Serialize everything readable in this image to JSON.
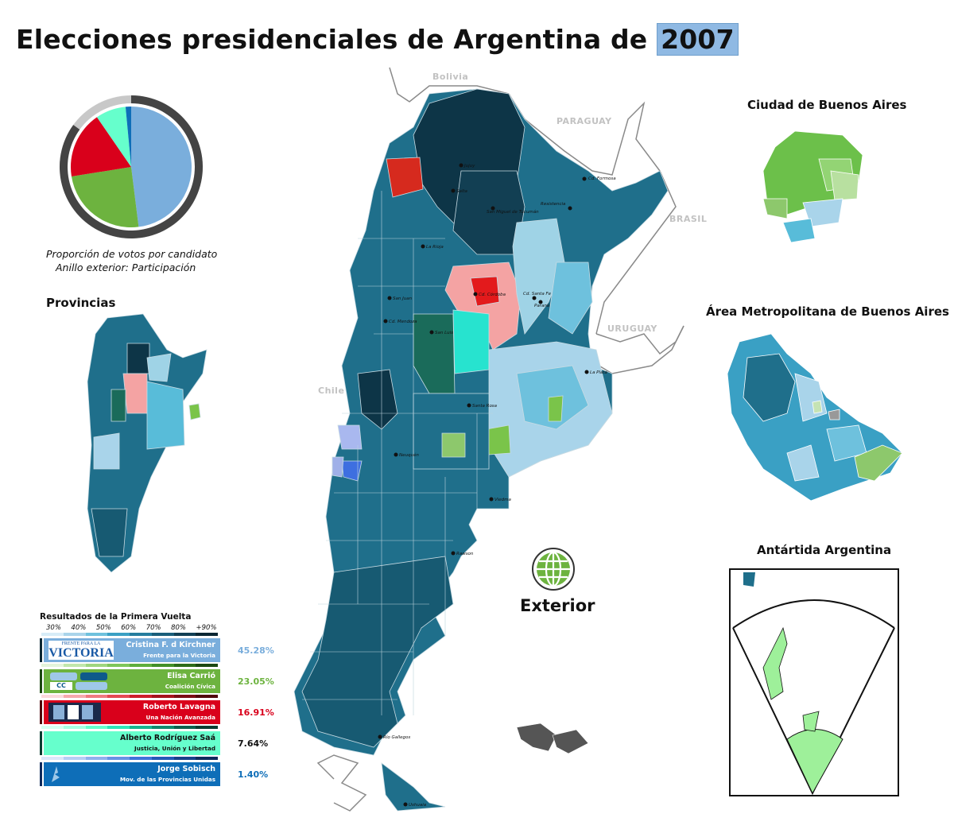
{
  "title": {
    "main": "Elecciones presidenciales de Argentina de",
    "year": "2007"
  },
  "pie": {
    "caption_line1": "Proporción de votos por candidato",
    "caption_line2": "Anillo exterior: Participación",
    "participation": 0.85,
    "slices": [
      {
        "candidate": "Cristina F. d Kirchner",
        "share": 45.28,
        "color": "#7aaedc"
      },
      {
        "candidate": "Elisa Carrió",
        "share": 23.05,
        "color": "#6db33f"
      },
      {
        "candidate": "Roberto Lavagna",
        "share": 16.91,
        "color": "#d9001b"
      },
      {
        "candidate": "Alberto Rodríguez Saá",
        "share": 7.64,
        "color": "#66ffcc"
      },
      {
        "candidate": "Jorge Sobisch",
        "share": 1.4,
        "color": "#0e6eb8"
      }
    ]
  },
  "labels": {
    "provincias": "Provincias",
    "caba": "Ciudad de Buenos Aires",
    "amba": "Área Metropolitana de Buenos Aires",
    "antartida": "Antártida Argentina",
    "exterior": "Exterior"
  },
  "neighbors": [
    "Bolivia",
    "PARAGUAY",
    "BRASIL",
    "URUGUAY",
    "Chile"
  ],
  "cities": [
    "Cd. Formosa",
    "Resistencia",
    "San Miguel de Tucumán",
    "Salta",
    "Jujuy",
    "La Rioja",
    "Cd. Córdoba",
    "San Juan",
    "Cd. Santa Fe",
    "Paraná",
    "Cd. Mendoza",
    "San Luis",
    "La Plata",
    "Santa Rosa",
    "Neuquén",
    "Viedma",
    "Rawson",
    "Río Gallegos",
    "Ushuaia"
  ],
  "results": {
    "header": "Resultados de la Primera Vuelta",
    "scale": [
      "30%",
      "40%",
      "50%",
      "60%",
      "70%",
      "80%",
      "+90%"
    ],
    "candidates": [
      {
        "name": "Cristina F. d Kirchner",
        "party": "Frente para la Victoria",
        "pct": "45.28%",
        "color": "#7aaedc",
        "ramp": [
          "#d7ecf7",
          "#a9d4ea",
          "#6ec1dd",
          "#3aa0c4",
          "#257d9e",
          "#1a5e7a",
          "#113f54",
          "#0a2633"
        ]
      },
      {
        "name": "Elisa Carrió",
        "party": "Coalición Cívica",
        "pct": "23.05%",
        "color": "#6db33f",
        "ramp": [
          "#e3f4da",
          "#c1e6ab",
          "#9fd67f",
          "#7fc65a",
          "#5fae3c",
          "#438f28",
          "#2d6b19",
          "#1b4810"
        ]
      },
      {
        "name": "Roberto Lavagna",
        "party": "Una Nación Avanzada",
        "pct": "16.91%",
        "color": "#d9001b",
        "ramp": [
          "#fbd9dc",
          "#f6a9ad",
          "#ef7a80",
          "#e44a53",
          "#cc1f2b",
          "#a5121d",
          "#7a0c14",
          "#4f070c"
        ]
      },
      {
        "name": "Alberto Rodríguez Saá",
        "party": "Justicia, Unión y Libertad",
        "pct": "7.64%",
        "color": "#66ffcc",
        "ramp": [
          "#d6fff2",
          "#a8ffe3",
          "#66ffcc",
          "#2ee6b8",
          "#16b58f",
          "#0f8a6d",
          "#0b614d",
          "#073d31"
        ]
      },
      {
        "name": "Jorge Sobisch",
        "party": "Mov. de las Provincias Unidas",
        "pct": "1.40%",
        "color": "#0e6eb8",
        "ramp": [
          "#dbe6fa",
          "#b6cdf4",
          "#8fb0ec",
          "#6792e3",
          "#3f73d9",
          "#2458b6",
          "#18408a",
          "#0f2a5c"
        ]
      }
    ]
  },
  "logos": {
    "fpv_top": "FRENTE PARA LA",
    "fpv_bottom": "VICTORIA",
    "cc": "CC"
  }
}
